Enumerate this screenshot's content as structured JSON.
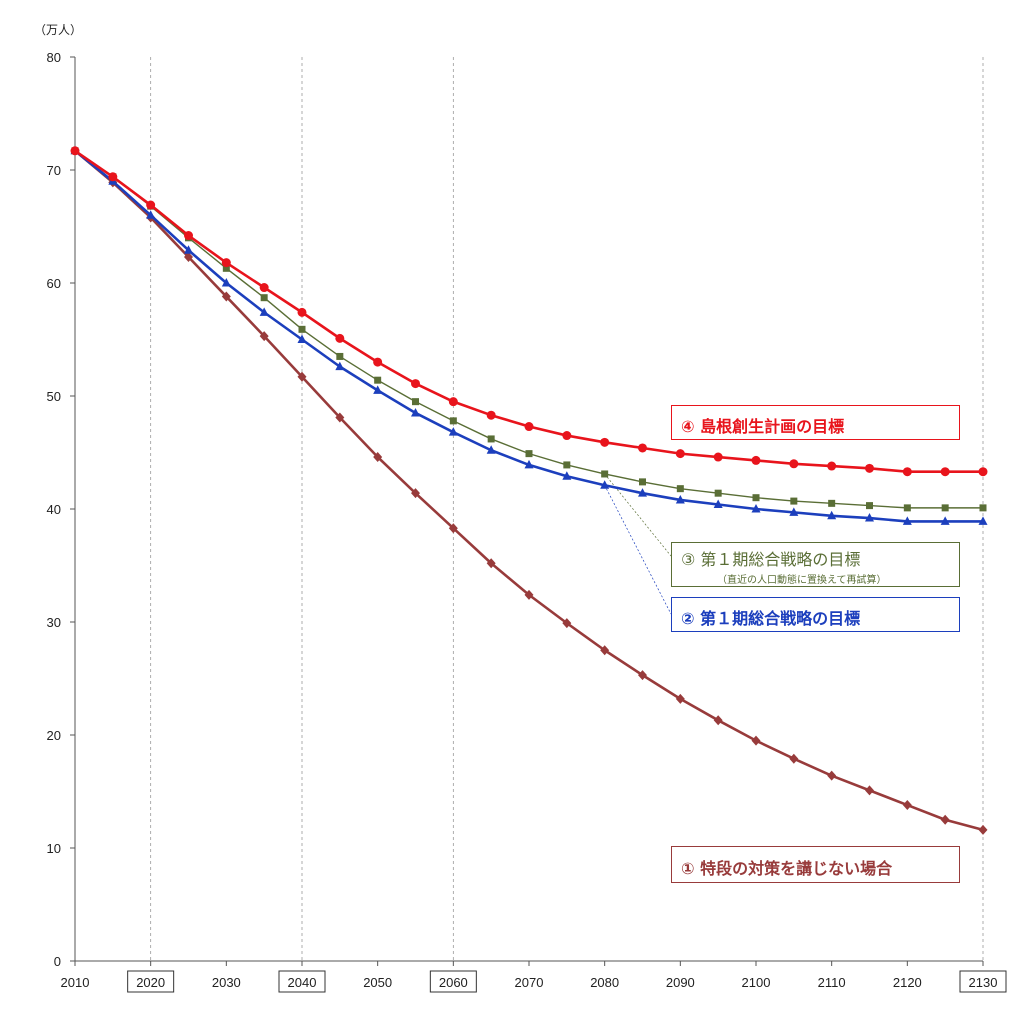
{
  "chart_data": {
    "type": "line",
    "ylabel": "（万人）",
    "ylim": [
      0,
      80
    ],
    "yticks": [
      0,
      10,
      20,
      30,
      40,
      50,
      60,
      70,
      80
    ],
    "xlim": [
      2010,
      2130
    ],
    "xticks": [
      2010,
      2020,
      2030,
      2040,
      2050,
      2060,
      2070,
      2080,
      2090,
      2100,
      2110,
      2120,
      2130
    ],
    "boxed_years": [
      2020,
      2040,
      2060,
      2130
    ],
    "x": [
      2010,
      2015,
      2020,
      2025,
      2030,
      2035,
      2040,
      2045,
      2050,
      2055,
      2060,
      2065,
      2070,
      2075,
      2080,
      2085,
      2090,
      2095,
      2100,
      2105,
      2110,
      2115,
      2120,
      2125,
      2130
    ],
    "series": [
      {
        "name": "④ 島根創生計画の目標",
        "color": "#e8141c",
        "marker": "circle",
        "values": [
          71.7,
          69.4,
          66.9,
          64.2,
          61.8,
          59.6,
          57.4,
          55.1,
          53.0,
          51.1,
          49.5,
          48.3,
          47.3,
          46.5,
          45.9,
          45.4,
          44.9,
          44.6,
          44.3,
          44.0,
          43.8,
          43.6,
          43.3,
          43.3,
          43.3
        ]
      },
      {
        "name": "③ 第１期総合戦略の目標",
        "sub": "（直近の人口動態に置換えて再試算）",
        "color": "#5a6e36",
        "marker": "square",
        "values": [
          71.7,
          69.4,
          66.8,
          64.0,
          61.3,
          58.7,
          55.9,
          53.5,
          51.4,
          49.5,
          47.8,
          46.2,
          44.9,
          43.9,
          43.1,
          42.4,
          41.8,
          41.4,
          41.0,
          40.7,
          40.5,
          40.3,
          40.1,
          40.1,
          40.1
        ]
      },
      {
        "name": "② 第１期総合戦略の目標",
        "color": "#1c3fbd",
        "marker": "triangle",
        "values": [
          71.7,
          69.0,
          66.0,
          62.9,
          60.0,
          57.4,
          55.0,
          52.6,
          50.5,
          48.5,
          46.8,
          45.2,
          43.9,
          42.9,
          42.1,
          41.4,
          40.8,
          40.4,
          40.0,
          39.7,
          39.4,
          39.2,
          38.9,
          38.9,
          38.9
        ]
      },
      {
        "name": "① 特段の対策を講じない場合",
        "color": "#983b3b",
        "marker": "diamond",
        "values": [
          71.7,
          68.9,
          65.8,
          62.3,
          58.8,
          55.3,
          51.7,
          48.1,
          44.6,
          41.4,
          38.3,
          35.2,
          32.4,
          29.9,
          27.5,
          25.3,
          23.2,
          21.3,
          19.5,
          17.9,
          16.4,
          15.1,
          13.8,
          12.5,
          11.6
        ]
      }
    ]
  },
  "legend": {
    "s4": {
      "label": "④ 島根創生計画の目標",
      "color": "#e8141c"
    },
    "s3": {
      "label": "③ 第１期総合戦略の目標",
      "sub": "（直近の人口動態に置換えて再試算）",
      "color": "#5a6e36"
    },
    "s2": {
      "label": "② 第１期総合戦略の目標",
      "color": "#1c3fbd"
    },
    "s1": {
      "label": "① 特段の対策を講じない場合",
      "color": "#983b3b"
    }
  }
}
